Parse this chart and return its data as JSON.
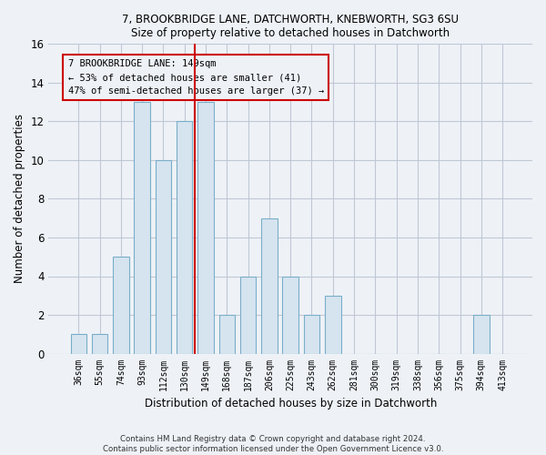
{
  "title1": "7, BROOKBRIDGE LANE, DATCHWORTH, KNEBWORTH, SG3 6SU",
  "title2": "Size of property relative to detached houses in Datchworth",
  "xlabel": "Distribution of detached houses by size in Datchworth",
  "ylabel": "Number of detached properties",
  "categories": [
    "36sqm",
    "55sqm",
    "74sqm",
    "93sqm",
    "112sqm",
    "130sqm",
    "149sqm",
    "168sqm",
    "187sqm",
    "206sqm",
    "225sqm",
    "243sqm",
    "262sqm",
    "281sqm",
    "300sqm",
    "319sqm",
    "338sqm",
    "356sqm",
    "375sqm",
    "394sqm",
    "413sqm"
  ],
  "values": [
    1,
    1,
    5,
    13,
    10,
    12,
    13,
    2,
    4,
    7,
    4,
    2,
    3,
    0,
    0,
    0,
    0,
    0,
    0,
    2,
    0
  ],
  "bar_color": "#d6e4f0",
  "bar_edge_color": "#7aaec8",
  "highlight_index": 6,
  "highlight_line_color": "#cc0000",
  "annotation_line1": "7 BROOKBRIDGE LANE: 149sqm",
  "annotation_line2": "← 53% of detached houses are smaller (41)",
  "annotation_line3": "47% of semi-detached houses are larger (37) →",
  "annotation_box_color": "#cc0000",
  "ylim": [
    0,
    16
  ],
  "yticks": [
    0,
    2,
    4,
    6,
    8,
    10,
    12,
    14,
    16
  ],
  "footer1": "Contains HM Land Registry data © Crown copyright and database right 2024.",
  "footer2": "Contains public sector information licensed under the Open Government Licence v3.0.",
  "background_color": "#eef2f7",
  "grid_color": "#c0c8d4",
  "bar_width": 0.75
}
